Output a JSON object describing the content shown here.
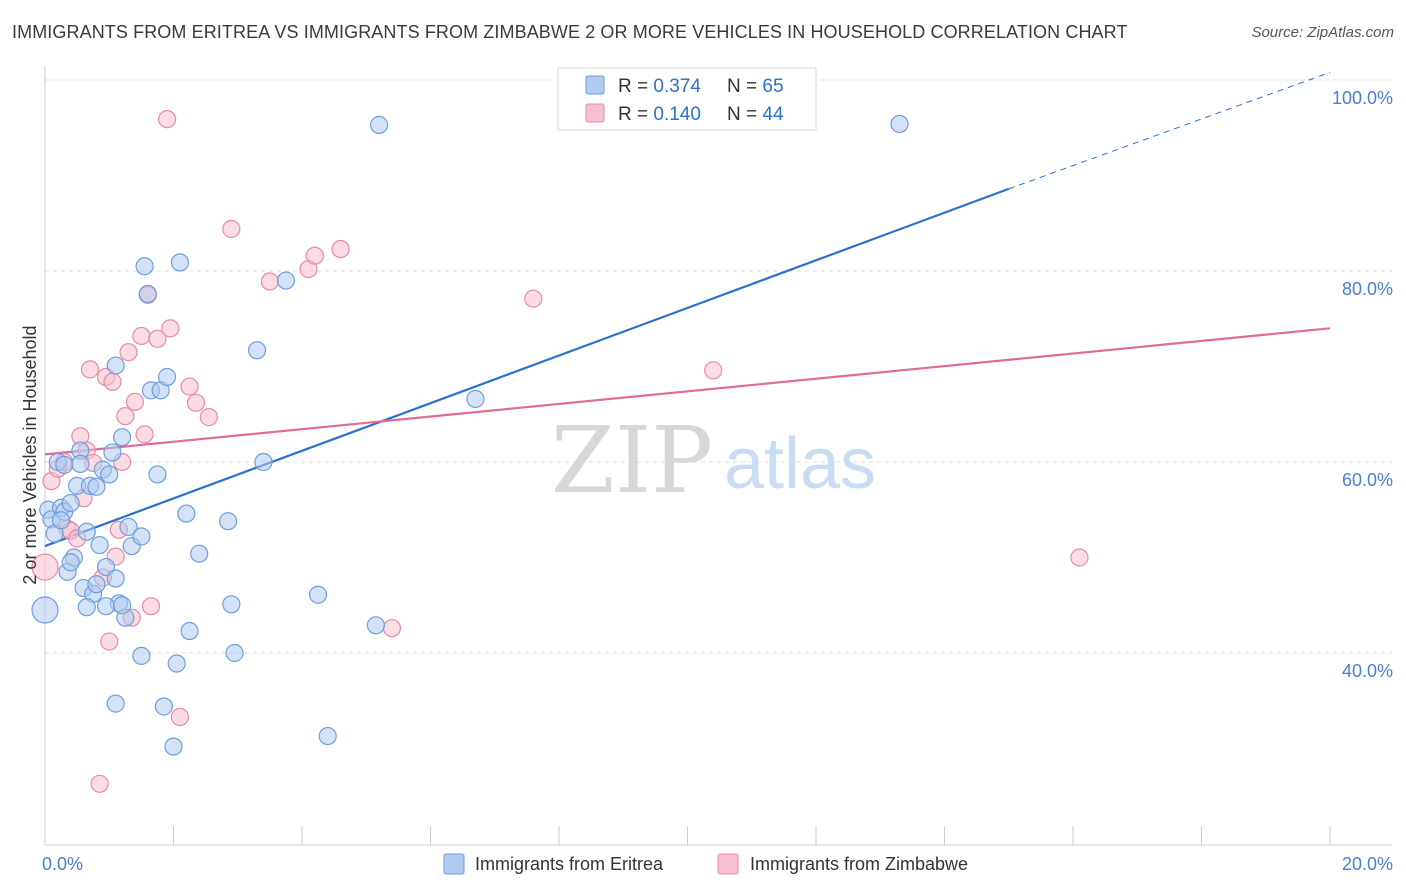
{
  "title": "IMMIGRANTS FROM ERITREA VS IMMIGRANTS FROM ZIMBABWE 2 OR MORE VEHICLES IN HOUSEHOLD CORRELATION CHART",
  "source": "Source: ZipAtlas.com",
  "watermark": {
    "part1": "ZIP",
    "part2": "atlas"
  },
  "colors": {
    "eritrea_fill": "#aecbf0",
    "eritrea_stroke": "#6e9fdc",
    "eritrea_line": "#2c6fd1",
    "zimbabwe_fill": "#f7c0d0",
    "zimbabwe_stroke": "#e88aa8",
    "zimbabwe_line": "#e06b96",
    "tick_label": "#4a7fd0",
    "grid": "#dddddd"
  },
  "legend_top": [
    {
      "r_label": "R = ",
      "r_value": "0.374",
      "n_label": "N = ",
      "n_value": "65"
    },
    {
      "r_label": "R = ",
      "r_value": "0.140",
      "n_label": "N = ",
      "n_value": "44"
    }
  ],
  "chart_data": {
    "type": "scatter",
    "title": "IMMIGRANTS FROM ERITREA VS IMMIGRANTS FROM ZIMBABWE 2 OR MORE VEHICLES IN HOUSEHOLD CORRELATION CHART",
    "xlabel": "",
    "ylabel": "2 or more Vehicles in Household",
    "xlim": [
      0,
      20
    ],
    "ylim": [
      20,
      102
    ],
    "x_tick_labels": [
      {
        "value": 0,
        "label": "0.0%"
      },
      {
        "value": 20,
        "label": "20.0%"
      }
    ],
    "y_tick_labels": [
      {
        "value": 100,
        "label": "100.0%"
      },
      {
        "value": 80,
        "label": "80.0%"
      },
      {
        "value": 60,
        "label": "60.0%"
      },
      {
        "value": 40,
        "label": "40.0%"
      }
    ],
    "grid": true,
    "legend_position": "bottom",
    "series": [
      {
        "name": "Immigrants from Eritrea",
        "R": 0.374,
        "N": 65,
        "trend": {
          "x": [
            0,
            15
          ],
          "y": [
            51.2,
            88.6
          ],
          "dashed_extension_to": [
            20,
            100.8
          ]
        },
        "points": [
          [
            0.0,
            44.5
          ],
          [
            0.05,
            55.0
          ],
          [
            0.1,
            54.0
          ],
          [
            0.15,
            52.5
          ],
          [
            0.2,
            60.0
          ],
          [
            0.25,
            55.2
          ],
          [
            0.3,
            54.8
          ],
          [
            0.35,
            48.5
          ],
          [
            0.4,
            55.7
          ],
          [
            0.45,
            50.0
          ],
          [
            0.5,
            57.5
          ],
          [
            0.55,
            61.2
          ],
          [
            0.6,
            46.8
          ],
          [
            0.65,
            52.7
          ],
          [
            0.7,
            57.5
          ],
          [
            0.75,
            46.2
          ],
          [
            0.8,
            47.2
          ],
          [
            0.85,
            51.3
          ],
          [
            0.9,
            59.2
          ],
          [
            0.95,
            49.0
          ],
          [
            1.0,
            58.7
          ],
          [
            1.05,
            61.0
          ],
          [
            1.1,
            34.7
          ],
          [
            1.15,
            45.2
          ],
          [
            1.2,
            62.6
          ],
          [
            1.25,
            43.7
          ],
          [
            1.3,
            53.2
          ],
          [
            1.35,
            51.2
          ],
          [
            1.5,
            39.7
          ],
          [
            1.5,
            52.2
          ],
          [
            1.55,
            80.5
          ],
          [
            1.6,
            77.6
          ],
          [
            1.65,
            67.5
          ],
          [
            1.75,
            58.7
          ],
          [
            1.8,
            67.5
          ],
          [
            1.85,
            34.4
          ],
          [
            1.9,
            68.9
          ],
          [
            2.0,
            30.2
          ],
          [
            2.05,
            38.9
          ],
          [
            2.1,
            80.9
          ],
          [
            2.2,
            54.6
          ],
          [
            2.25,
            42.3
          ],
          [
            2.4,
            50.4
          ],
          [
            2.85,
            53.8
          ],
          [
            2.9,
            45.1
          ],
          [
            2.95,
            40.0
          ],
          [
            3.3,
            71.7
          ],
          [
            3.4,
            60.0
          ],
          [
            3.75,
            79.0
          ],
          [
            4.25,
            46.1
          ],
          [
            4.4,
            31.3
          ],
          [
            5.15,
            42.9
          ],
          [
            5.2,
            95.3
          ],
          [
            6.7,
            66.6
          ],
          [
            13.3,
            95.4
          ],
          [
            1.1,
            70.1
          ],
          [
            0.25,
            53.9
          ],
          [
            0.3,
            59.7
          ],
          [
            0.4,
            49.5
          ],
          [
            0.95,
            44.9
          ],
          [
            1.2,
            45.0
          ],
          [
            0.8,
            57.4
          ],
          [
            0.55,
            59.8
          ],
          [
            1.1,
            47.8
          ],
          [
            0.65,
            44.8
          ]
        ]
      },
      {
        "name": "Immigrants from Zimbabwe",
        "R": 0.14,
        "N": 44,
        "trend": {
          "x": [
            0,
            20
          ],
          "y": [
            60.8,
            74.0
          ]
        },
        "points": [
          [
            0.0,
            49.0
          ],
          [
            0.1,
            58.0
          ],
          [
            0.2,
            59.3
          ],
          [
            0.3,
            60.0
          ],
          [
            0.35,
            53.0
          ],
          [
            0.4,
            52.8
          ],
          [
            0.5,
            52.0
          ],
          [
            0.55,
            62.7
          ],
          [
            0.6,
            56.2
          ],
          [
            0.65,
            61.2
          ],
          [
            0.7,
            69.7
          ],
          [
            0.75,
            59.9
          ],
          [
            0.85,
            26.3
          ],
          [
            0.9,
            47.9
          ],
          [
            0.95,
            68.9
          ],
          [
            1.0,
            41.2
          ],
          [
            1.05,
            68.4
          ],
          [
            1.1,
            50.1
          ],
          [
            1.15,
            52.9
          ],
          [
            1.2,
            60.0
          ],
          [
            1.25,
            64.8
          ],
          [
            1.3,
            71.5
          ],
          [
            1.35,
            43.7
          ],
          [
            1.4,
            66.3
          ],
          [
            1.5,
            73.2
          ],
          [
            1.55,
            62.9
          ],
          [
            1.6,
            77.5
          ],
          [
            1.65,
            44.9
          ],
          [
            1.75,
            72.9
          ],
          [
            1.9,
            95.9
          ],
          [
            1.95,
            74.0
          ],
          [
            2.1,
            33.3
          ],
          [
            2.25,
            67.9
          ],
          [
            2.35,
            66.2
          ],
          [
            2.55,
            64.7
          ],
          [
            2.9,
            84.4
          ],
          [
            3.5,
            78.9
          ],
          [
            4.1,
            80.2
          ],
          [
            4.2,
            81.6
          ],
          [
            4.6,
            82.3
          ],
          [
            5.4,
            42.6
          ],
          [
            7.6,
            77.1
          ],
          [
            10.4,
            69.6
          ],
          [
            16.1,
            50.0
          ]
        ]
      }
    ]
  }
}
